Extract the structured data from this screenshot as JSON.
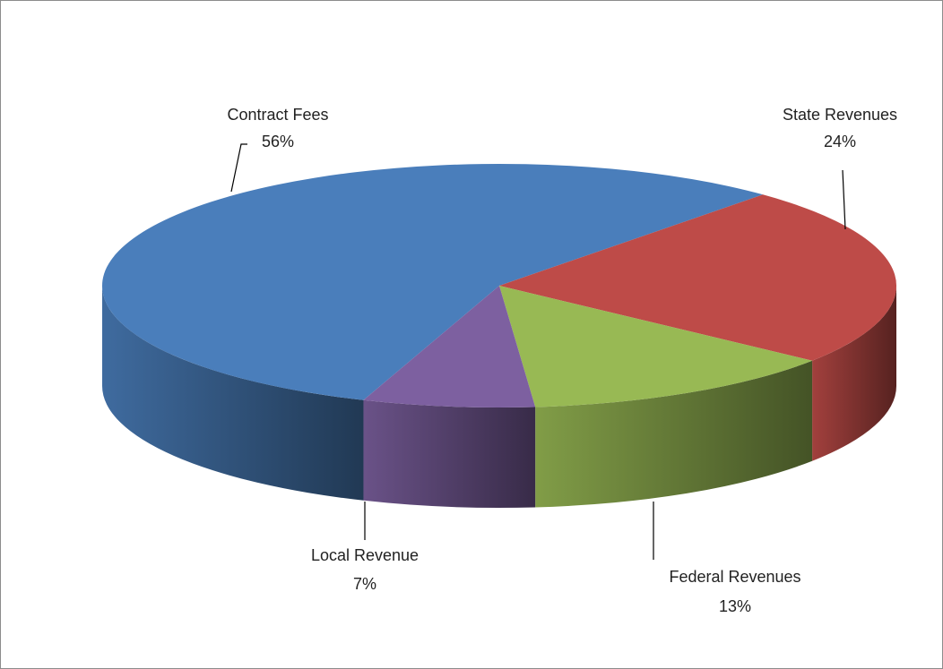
{
  "chart_data": {
    "type": "pie",
    "categories": [
      "Contract Fees",
      "State Revenues",
      "Federal Revenues",
      "Local Revenue"
    ],
    "values": [
      56,
      24,
      13,
      7
    ],
    "value_labels": [
      "56%",
      "24%",
      "13%",
      "7%"
    ],
    "colors": [
      "#4a7ebb",
      "#be4b48",
      "#98b954",
      "#7d60a0"
    ],
    "three_d": true
  }
}
